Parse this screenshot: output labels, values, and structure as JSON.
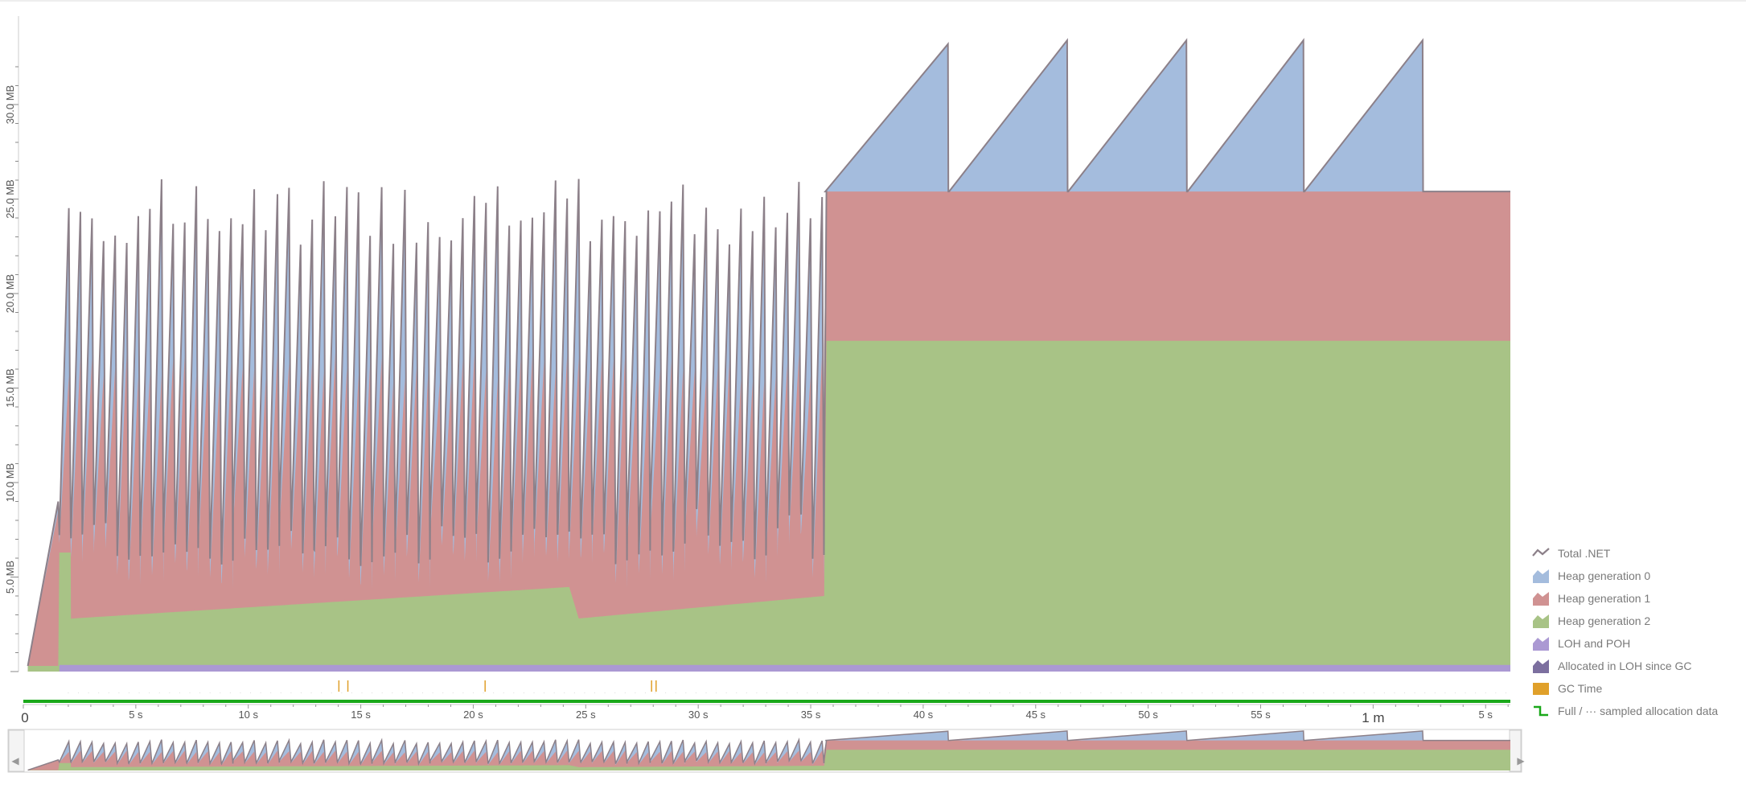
{
  "chart_data": {
    "type": "area",
    "title": "",
    "xlabel": "",
    "ylabel": "",
    "y_tick_labels": [
      "5.0 MB",
      "10.0 MB",
      "15.0 MB",
      "20.0 MB",
      "25.0 MB",
      "30.0 MB"
    ],
    "y_ticks": [
      5,
      10,
      15,
      20,
      25,
      30
    ],
    "ylim": [
      0,
      32
    ],
    "x_tick_labels": [
      "0",
      "5 s",
      "10 s",
      "15 s",
      "20 s",
      "25 s",
      "30 s",
      "35 s",
      "40 s",
      "45 s",
      "50 s",
      "55 s",
      "1 m",
      "5 s"
    ],
    "x_ticks": [
      0,
      5,
      10,
      15,
      20,
      25,
      30,
      35,
      40,
      45,
      50,
      55,
      60,
      65
    ],
    "xlim": [
      0,
      66.1
    ],
    "phase1": {
      "start": 1.6,
      "end": 35.6,
      "peaks": 66,
      "gen2_base": [
        2.8,
        3.0,
        3.3,
        3.5,
        3.7,
        4.0,
        4.2,
        4.4,
        4.6,
        4.8,
        5.0
      ],
      "gen2_reset_at": 24.6
    },
    "sawtooth_cycles": [
      {
        "start": 35.6,
        "peak_time": 41.1,
        "base": 25.4,
        "peak": 33.2
      },
      {
        "start": 41.1,
        "peak_time": 46.4,
        "base": 25.4,
        "peak": 33.4
      },
      {
        "start": 46.4,
        "peak_time": 51.7,
        "base": 25.4,
        "peak": 33.4
      },
      {
        "start": 51.7,
        "peak_time": 56.9,
        "base": 25.4,
        "peak": 33.4
      },
      {
        "start": 56.9,
        "peak_time": 62.2,
        "base": 25.4,
        "peak": 33.4
      }
    ],
    "series": [
      {
        "name": "Total .NET",
        "color": "#8c8089",
        "kind": "line"
      },
      {
        "name": "Heap generation 0",
        "color": "#a4bcdd",
        "kind": "area",
        "phase2_top": 25.4
      },
      {
        "name": "Heap generation 1",
        "color": "#d09292",
        "kind": "area",
        "phase2_top": 25.4
      },
      {
        "name": "Heap generation 2",
        "color": "#a8c386",
        "kind": "area",
        "phase2_top": 17.5
      },
      {
        "name": "LOH and POH",
        "color": "#ab99d3",
        "kind": "area",
        "value": 0.35
      },
      {
        "name": "Allocated in LOH since GC",
        "color": "#7c6f9f",
        "kind": "area",
        "value": 0
      },
      {
        "name": "GC Time",
        "color": "#e0a02a",
        "kind": "bar",
        "events": [
          14.0,
          14.4,
          20.5,
          27.9,
          28.1
        ]
      }
    ],
    "legend_position": "bottom-right",
    "grid": false
  },
  "legend": {
    "items": [
      {
        "label": "Total .NET",
        "icon": "line-icon",
        "color": "#8c8089"
      },
      {
        "label": "Heap generation 0",
        "icon": "area-icon",
        "color": "#a4bcdd"
      },
      {
        "label": "Heap generation 1",
        "icon": "area-icon",
        "color": "#d09292"
      },
      {
        "label": "Heap generation 2",
        "icon": "area-icon",
        "color": "#a8c386"
      },
      {
        "label": "LOH and POH",
        "icon": "area-icon",
        "color": "#ab99d3"
      },
      {
        "label": "Allocated in LOH since GC",
        "icon": "area-icon",
        "color": "#7c6f9f"
      },
      {
        "label": "GC Time",
        "icon": "bar-icon",
        "color": "#e0a02a"
      },
      {
        "label": "Full / ··· sampled allocation data",
        "icon": "step-icon",
        "color": "#1aa81a"
      }
    ]
  },
  "navigator": {
    "left_arrow": "◀",
    "right_arrow": "▶",
    "sampling_bar_color": "#1aa81a"
  }
}
